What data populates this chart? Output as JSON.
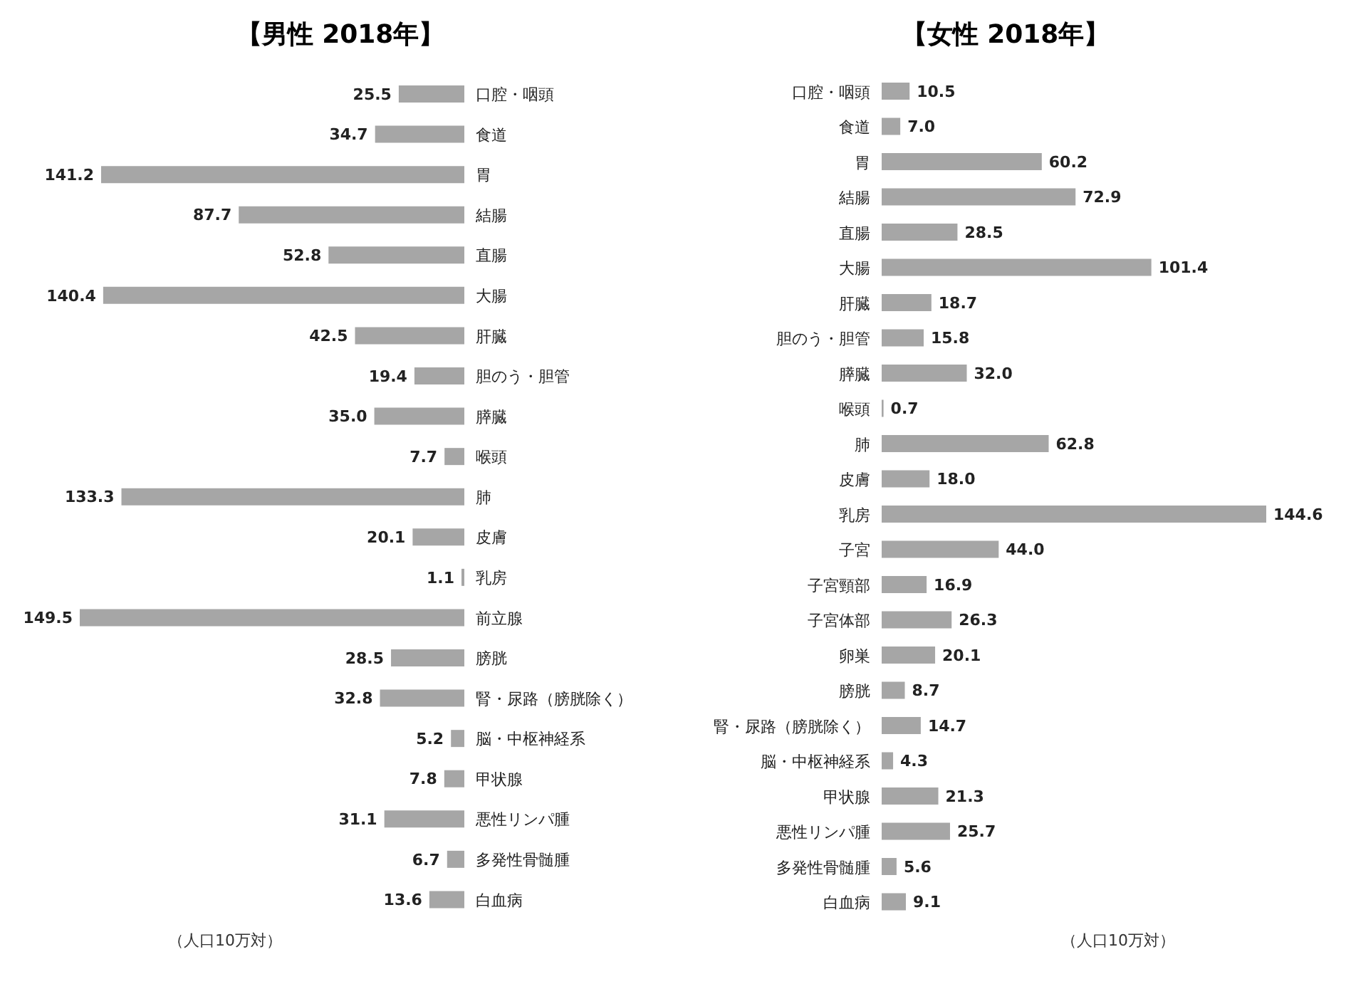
{
  "chart_data": [
    {
      "type": "bar",
      "orientation": "horizontal",
      "title": "【男性 2018年】",
      "categories": [
        "口腔・咽頭",
        "食道",
        "胃",
        "結腸",
        "直腸",
        "大腸",
        "肝臓",
        "胆のう・胆管",
        "膵臓",
        "喉頭",
        "肺",
        "皮膚",
        "乳房",
        "前立腺",
        "膀胱",
        "腎・尿路（膀胱除く）",
        "脳・中枢神経系",
        "甲状腺",
        "悪性リンパ腫",
        "多発性骨髄腫",
        "白血病"
      ],
      "values": [
        25.5,
        34.7,
        141.2,
        87.7,
        52.8,
        140.4,
        42.5,
        19.4,
        35.0,
        7.7,
        133.3,
        20.1,
        1.1,
        149.5,
        28.5,
        32.8,
        5.2,
        7.8,
        31.1,
        6.7,
        13.6
      ],
      "value_labels": [
        "25.5",
        "34.7",
        "141.2",
        "87.7",
        "52.8",
        "140.4",
        "42.5",
        "19.4",
        "35.0",
        "7.7",
        "133.3",
        "20.1",
        "1.1",
        "149.5",
        "28.5",
        "32.8",
        "5.2",
        "7.8",
        "31.1",
        "6.7",
        "13.6"
      ],
      "color": "#a6a6a6",
      "xlim": [
        149.5,
        0
      ],
      "tick_labels": "y",
      "annotations": [
        "（人口10万対）"
      ]
    },
    {
      "type": "bar",
      "orientation": "horizontal",
      "title": "【女性 2018年】",
      "categories": [
        "口腔・咽頭",
        "食道",
        "胃",
        "結腸",
        "直腸",
        "大腸",
        "肝臓",
        "胆のう・胆管",
        "膵臓",
        "喉頭",
        "肺",
        "皮膚",
        "乳房",
        "子宮",
        "子宮頸部",
        "子宮体部",
        "卵巣",
        "膀胱",
        "腎・尿路（膀胱除く）",
        "脳・中枢神経系",
        "甲状腺",
        "悪性リンパ腫",
        "多発性骨髄腫",
        "白血病"
      ],
      "values": [
        10.5,
        7.0,
        60.2,
        72.9,
        28.5,
        101.4,
        18.7,
        15.8,
        32.0,
        0.7,
        62.8,
        18.0,
        144.6,
        44.0,
        16.9,
        26.3,
        20.1,
        8.7,
        14.7,
        4.3,
        21.3,
        25.7,
        5.6,
        9.1
      ],
      "value_labels": [
        "10.5",
        "7.0",
        "60.2",
        "72.9",
        "28.5",
        "101.4",
        "18.7",
        "15.8",
        "32.0",
        "0.7",
        "62.8",
        "18.0",
        "144.6",
        "44.0",
        "16.9",
        "26.3",
        "20.1",
        "8.7",
        "14.7",
        "4.3",
        "21.3",
        "25.7",
        "5.6",
        "9.1"
      ],
      "color": "#a6a6a6",
      "xlim": [
        0,
        144.6
      ],
      "tick_labels": "y",
      "annotations": [
        "（人口10万対）"
      ]
    }
  ]
}
